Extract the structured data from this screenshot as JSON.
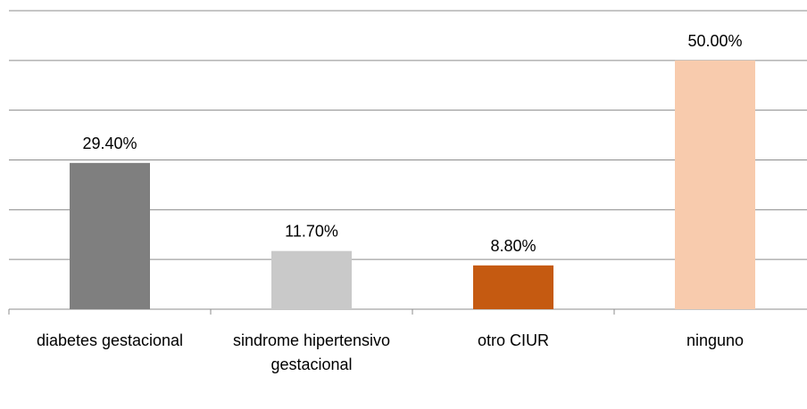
{
  "chart_data": {
    "type": "bar",
    "categories": [
      "diabetes gestacional",
      "sindrome hipertensivo gestacional",
      "otro CIUR",
      "ninguno"
    ],
    "values": [
      29.4,
      11.7,
      8.8,
      50
    ],
    "value_labels": [
      "29.40%",
      "11.70%",
      "8.80%",
      "50.00%"
    ],
    "colors": [
      "#7f7f7f",
      "#c9c9c9",
      "#c55a11",
      "#f8cbad"
    ],
    "ylim": [
      0,
      60
    ],
    "yticks": [
      0,
      10,
      20,
      30,
      40,
      50,
      60
    ],
    "grid": true
  }
}
